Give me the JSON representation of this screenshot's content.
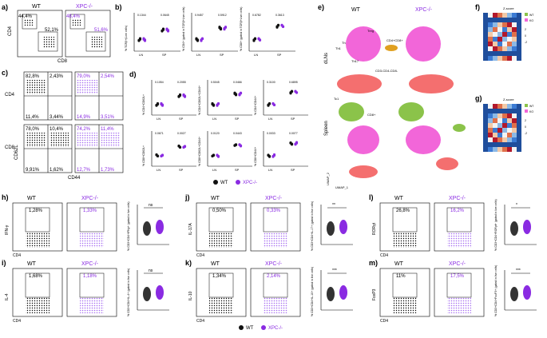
{
  "panels": {
    "a": "a)",
    "b": "b)",
    "c": "c)",
    "d": "d)",
    "e": "e)",
    "f": "f)",
    "g": "g)",
    "h": "h)",
    "i": "i)",
    "j": "j)",
    "k": "k)",
    "l": "l)",
    "m": "m)"
  },
  "groups": {
    "wt": "WT",
    "xpc": "XPC-/-"
  },
  "axes": {
    "cd4": "CD4",
    "cd8": "CD8",
    "cd44": "CD44",
    "cd62l": "CD62L",
    "ifng": "IFN-γ",
    "il4": "IL-4",
    "il17a": "IL-17A",
    "il10": "IL-10",
    "rorgt": "RORγt",
    "foxp3": "FoxP3",
    "umap1": "UMAP_1",
    "umap2": "UMAP_2",
    "ln": "LN",
    "sp": "SP"
  },
  "a_pct": {
    "wt_cd4": "44,4%",
    "wt_cd8": "52,1%",
    "xpc_cd4": "48,4%",
    "xpc_cd8": "51,6%"
  },
  "c_pct": {
    "cd4_wt": [
      "82,8%",
      "2,43%",
      "11,4%",
      "3,44%"
    ],
    "cd4_xpc": [
      "79,0%",
      "2,54%",
      "14,9%",
      "3,51%"
    ],
    "cd8_wt": [
      "78,0%",
      "10,4%",
      "9,91%",
      "1,62%"
    ],
    "cd8_xpc": [
      "74,2%",
      "11,4%",
      "12,7%",
      "1,73%"
    ]
  },
  "b_charts": [
    {
      "ylabel": "% TCRβ+(Live cells)",
      "pvals": [
        "0.1344",
        "0.0645"
      ]
    },
    {
      "ylabel": "% CD4+ (gated in TCRβ+Live cells)",
      "pvals": [
        "0.9457",
        "0.5912"
      ]
    },
    {
      "ylabel": "% CD8+ (gated in TCRβ+Live cells)",
      "pvals": [
        "0.6782",
        "0.3613"
      ]
    }
  ],
  "d_charts": [
    {
      "ylabel": "% CD4+CD62L+",
      "pvals": [
        "0.1054",
        "0.2055"
      ]
    },
    {
      "ylabel": "% CD4+CD62L+CD44+",
      "pvals": [
        "0.5045",
        "0.0466"
      ]
    },
    {
      "ylabel": "% CD4+CD44+",
      "pvals": [
        "0.3100",
        "0.6895"
      ]
    },
    {
      "ylabel": "% CD8+CD62L+",
      "pvals": [
        "0.0671",
        "0.0027"
      ]
    },
    {
      "ylabel": "% CD8+CD62L+CD44+",
      "pvals": [
        "0.0120",
        "0.0443"
      ]
    },
    {
      "ylabel": "% CD8+CD44+",
      "pvals": [
        "0.0033",
        "0.0077"
      ]
    }
  ],
  "umap": {
    "wt": "WT",
    "xpc": "XPC-/-",
    "dln": "dLNs",
    "spleen": "Spleen",
    "clusters": {
      "treg": "Treg",
      "th": "Th",
      "th1": "Th1",
      "th17": "Th17",
      "cd4cd8": "CD4+CD8+",
      "tc1": "Tc1",
      "cd8": "CD8+",
      "dn": "CD3-CD4-CD8-"
    }
  },
  "heat": {
    "title": "Z-score",
    "scale": [
      "2",
      "0",
      "-2"
    ],
    "groups_label": "Group",
    "wt": "WT",
    "ko": "KO"
  },
  "h_pct": {
    "wt": "1,28%",
    "xpc": "1,33%",
    "ylabel": "% CD3+CD4+IFNγ+ (gated in live cells)",
    "sig": "ns"
  },
  "i_pct": {
    "wt": "1,68%",
    "xpc": "1,18%",
    "ylabel": "% CD3+CD4+IL-4+ (gated in live cells)",
    "sig": "ns"
  },
  "j_pct": {
    "wt": "0,50%",
    "xpc": "0,33%",
    "ylabel": "% CD3+CD4+IL-17+ (gated in live cells)",
    "sig": "**"
  },
  "k_pct": {
    "wt": "1,34%",
    "xpc": "2,14%",
    "ylabel": "% CD3+CD4+IL-10+ (gated in live cells)",
    "sig": "***"
  },
  "l_pct": {
    "wt": "26,8%",
    "xpc": "16,2%",
    "ylabel": "% CD3+CD4+RORγt+ (gated in live cells)",
    "sig": "*"
  },
  "m_pct": {
    "wt": "11%",
    "xpc": "17,5%",
    "ylabel": "% CD3+CD4+FoxP3+ (gated in live cells)",
    "sig": "***"
  },
  "legend": {
    "wt": "WT",
    "xpc": "XPC-/-"
  },
  "colors": {
    "wt": "#111111",
    "xpc": "#8a2be2",
    "treg": "#f266d9",
    "cd8": "#8bc34a",
    "dn": "#f46f6f",
    "th": "#6fa8dc",
    "cd4cd8": "#e0a020"
  }
}
